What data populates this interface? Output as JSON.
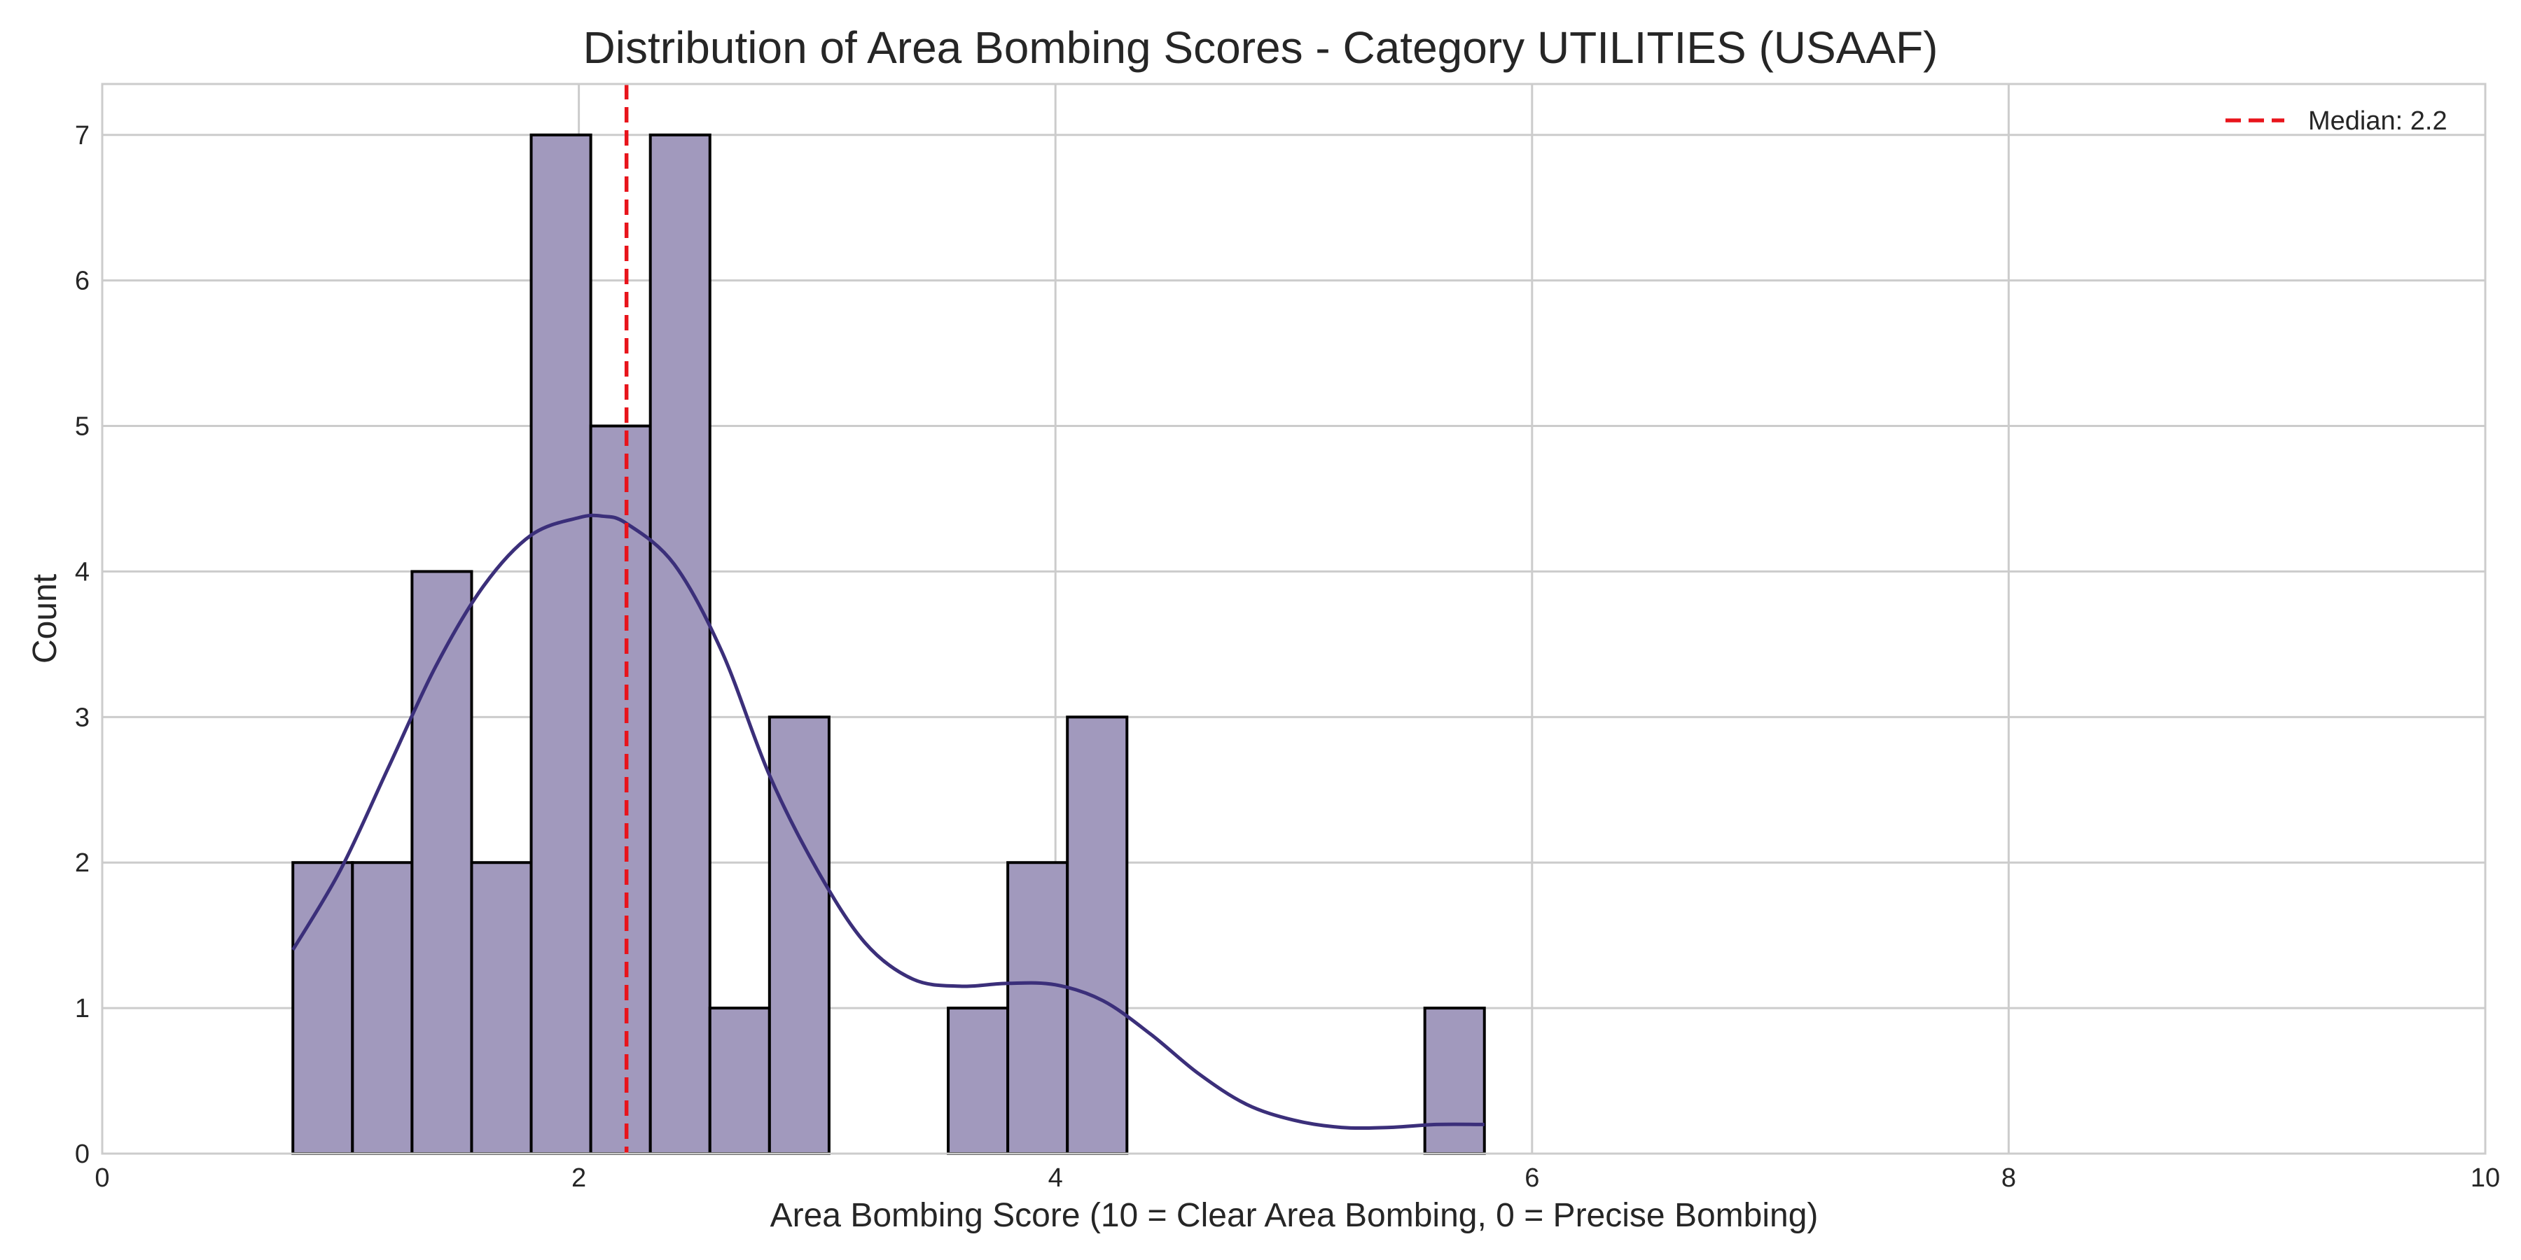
{
  "chart_data": {
    "type": "bar",
    "subtype": "histogram",
    "title": "Distribution of Area Bombing Scores - Category UTILITIES (USAAF)",
    "xlabel": "Area Bombing Score (10 = Clear Area Bombing, 0 = Precise Bombing)",
    "ylabel": "Count",
    "xlim": [
      0,
      10
    ],
    "ylim": [
      0,
      7.35
    ],
    "xticks": [
      0,
      2,
      4,
      6,
      8,
      10
    ],
    "yticks": [
      0,
      1,
      2,
      3,
      4,
      5,
      6,
      7
    ],
    "grid": true,
    "legend_position": "top-right",
    "bins": [
      {
        "x0": 0.8,
        "x1": 1.05,
        "count": 2
      },
      {
        "x0": 1.05,
        "x1": 1.3,
        "count": 2
      },
      {
        "x0": 1.3,
        "x1": 1.55,
        "count": 4
      },
      {
        "x0": 1.55,
        "x1": 1.8,
        "count": 2
      },
      {
        "x0": 1.8,
        "x1": 2.05,
        "count": 7
      },
      {
        "x0": 2.05,
        "x1": 2.3,
        "count": 5
      },
      {
        "x0": 2.3,
        "x1": 2.55,
        "count": 7
      },
      {
        "x0": 2.55,
        "x1": 2.8,
        "count": 1
      },
      {
        "x0": 2.8,
        "x1": 3.05,
        "count": 3
      },
      {
        "x0": 3.55,
        "x1": 3.8,
        "count": 1
      },
      {
        "x0": 3.8,
        "x1": 4.05,
        "count": 2
      },
      {
        "x0": 4.05,
        "x1": 4.3,
        "count": 3
      },
      {
        "x0": 5.55,
        "x1": 5.8,
        "count": 1
      }
    ],
    "bar_color": "#a199bd",
    "kde": {
      "color": "#3b2f7a",
      "x": [
        0.8,
        1.0,
        1.2,
        1.4,
        1.6,
        1.8,
        2.0,
        2.1,
        2.2,
        2.4,
        2.6,
        2.8,
        3.0,
        3.2,
        3.4,
        3.6,
        3.8,
        4.0,
        4.2,
        4.4,
        4.6,
        4.8,
        5.0,
        5.2,
        5.4,
        5.6,
        5.8
      ],
      "y": [
        1.4,
        1.95,
        2.65,
        3.35,
        3.9,
        4.25,
        4.37,
        4.38,
        4.33,
        4.05,
        3.45,
        2.6,
        1.95,
        1.45,
        1.2,
        1.15,
        1.17,
        1.16,
        1.05,
        0.82,
        0.55,
        0.34,
        0.23,
        0.18,
        0.18,
        0.2,
        0.2
      ]
    },
    "median": {
      "value": 2.2,
      "label": "Median: 2.2",
      "color": "#e8141b"
    }
  }
}
